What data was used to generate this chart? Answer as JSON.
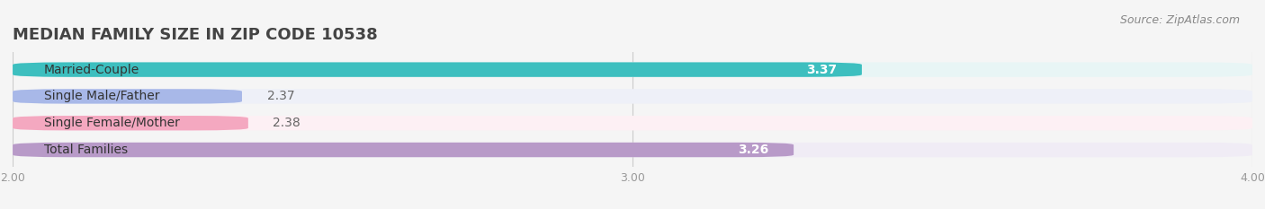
{
  "title": "MEDIAN FAMILY SIZE IN ZIP CODE 10538",
  "source": "Source: ZipAtlas.com",
  "categories": [
    "Married-Couple",
    "Single Male/Father",
    "Single Female/Mother",
    "Total Families"
  ],
  "values": [
    3.37,
    2.37,
    2.38,
    3.26
  ],
  "bar_colors": [
    "#3dbfbf",
    "#a8b8e8",
    "#f4a8c0",
    "#b89ac8"
  ],
  "bar_bg_colors": [
    "#e8f5f5",
    "#eef0f8",
    "#fdf0f4",
    "#f0ecf5"
  ],
  "value_inside": [
    true,
    false,
    false,
    true
  ],
  "xlim": [
    2.0,
    4.0
  ],
  "xticks": [
    2.0,
    3.0,
    4.0
  ],
  "xtick_labels": [
    "2.00",
    "3.00",
    "4.00"
  ],
  "background_color": "#f5f5f5",
  "bar_height": 0.55,
  "title_fontsize": 13,
  "label_fontsize": 10,
  "value_fontsize": 10,
  "source_fontsize": 9
}
